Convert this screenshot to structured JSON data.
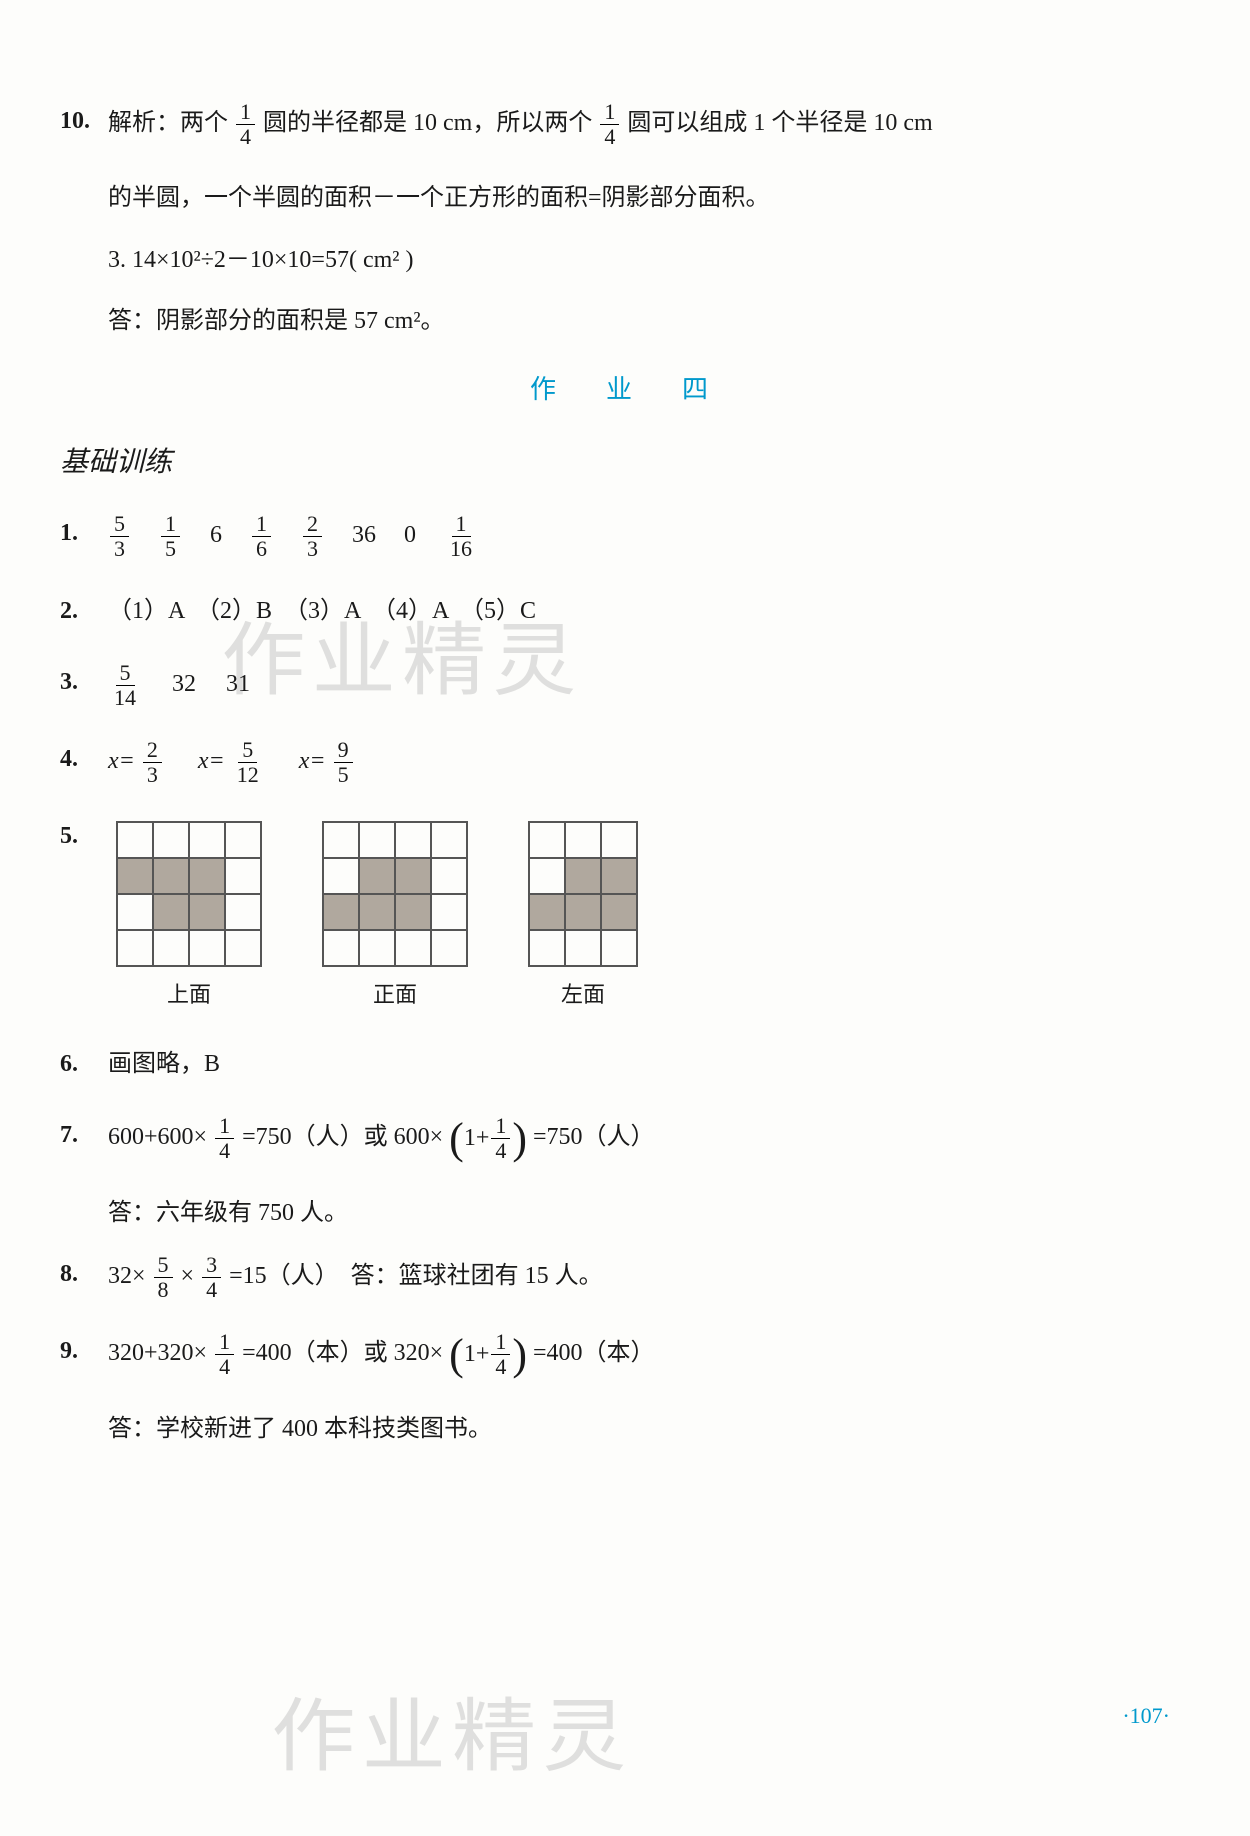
{
  "q10": {
    "num": "10.",
    "line1_a": "解析：两个",
    "line1_frac": {
      "n": "1",
      "d": "4"
    },
    "line1_b": "圆的半径都是 10 cm，所以两个",
    "line1_frac2": {
      "n": "1",
      "d": "4"
    },
    "line1_c": "圆可以组成 1 个半径是 10 cm",
    "line2": "的半圆，一个半圆的面积－一个正方形的面积=阴影部分面积。",
    "line3": "3. 14×10²÷2－10×10=57( cm² )",
    "line4": "答：阴影部分的面积是 57 cm²。"
  },
  "section": "作　业　四",
  "subtitle": "基础训练",
  "q1": {
    "num": "1.",
    "items": [
      {
        "frac": {
          "n": "5",
          "d": "3"
        }
      },
      {
        "frac": {
          "n": "1",
          "d": "5"
        }
      },
      {
        "text": "6"
      },
      {
        "frac": {
          "n": "1",
          "d": "6"
        }
      },
      {
        "frac": {
          "n": "2",
          "d": "3"
        }
      },
      {
        "text": "36"
      },
      {
        "text": "0"
      },
      {
        "frac": {
          "n": "1",
          "d": "16"
        }
      }
    ]
  },
  "q2": {
    "num": "2.",
    "text": "（1）A　（2）B　（3）A　（4）A　（5）C"
  },
  "q3": {
    "num": "3.",
    "frac": {
      "n": "5",
      "d": "14"
    },
    "t1": "32",
    "t2": "31"
  },
  "q4": {
    "num": "4.",
    "eq1_lhs": "x=",
    "eq1_frac": {
      "n": "2",
      "d": "3"
    },
    "eq2_lhs": "x=",
    "eq2_frac": {
      "n": "5",
      "d": "12"
    },
    "eq3_lhs": "x=",
    "eq3_frac": {
      "n": "9",
      "d": "5"
    }
  },
  "q5": {
    "num": "5.",
    "grids": [
      {
        "cols": 4,
        "rows": 4,
        "label": "上面",
        "fill": [
          [
            1,
            0
          ],
          [
            1,
            1
          ],
          [
            1,
            2
          ],
          [
            2,
            1
          ],
          [
            2,
            2
          ]
        ]
      },
      {
        "cols": 4,
        "rows": 4,
        "label": "正面",
        "fill": [
          [
            1,
            1
          ],
          [
            1,
            2
          ],
          [
            2,
            0
          ],
          [
            2,
            1
          ],
          [
            2,
            2
          ]
        ]
      },
      {
        "cols": 3,
        "rows": 4,
        "label": "左面",
        "fill": [
          [
            1,
            1
          ],
          [
            1,
            2
          ],
          [
            2,
            0
          ],
          [
            2,
            1
          ],
          [
            2,
            2
          ]
        ]
      }
    ]
  },
  "q6": {
    "num": "6.",
    "text": "画图略，B"
  },
  "q7": {
    "num": "7.",
    "a": "600+600×",
    "frac1": {
      "n": "1",
      "d": "4"
    },
    "b": "=750（人）或 600×",
    "frac2": {
      "n": "1",
      "d": "4"
    },
    "inside_pre": "1+",
    "c": "=750（人）",
    "ans": "答：六年级有 750 人。"
  },
  "q8": {
    "num": "8.",
    "a": "32×",
    "frac1": {
      "n": "5",
      "d": "8"
    },
    "b": "×",
    "frac2": {
      "n": "3",
      "d": "4"
    },
    "c": "=15（人）　答：篮球社团有 15 人。"
  },
  "q9": {
    "num": "9.",
    "a": "320+320×",
    "frac1": {
      "n": "1",
      "d": "4"
    },
    "b": "=400（本）或 320×",
    "frac2": {
      "n": "1",
      "d": "4"
    },
    "inside_pre": "1+",
    "c": "=400（本）",
    "ans": "答：学校新进了 400 本科技类图书。"
  },
  "pagenum": "·107·",
  "watermark": "作业精灵",
  "colors": {
    "accent": "#0099cc",
    "text": "#1a1a1a",
    "fill": "#b0a89e",
    "grid": "#555"
  }
}
